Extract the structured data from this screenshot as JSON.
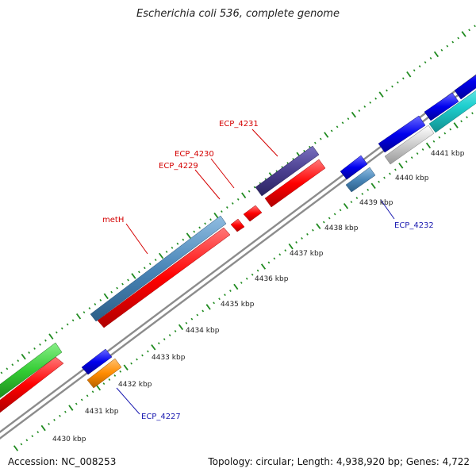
{
  "header": {
    "title": "Escherichia coli 536, complete genome"
  },
  "footer": {
    "accession": "Accession: NC_008253",
    "summary": "Topology: circular; Length: 4,938,920 bp; Genes: 4,722"
  },
  "tick_labels": [
    "4430 kbp",
    "4431 kbp",
    "4432 kbp",
    "4433 kbp",
    "4434 kbp",
    "4435 kbp",
    "4436 kbp",
    "4437 kbp",
    "4438 kbp",
    "4439 kbp",
    "4440 kbp",
    "4441 kbp"
  ],
  "gene_labels": [
    "ECP_4231",
    "ECP_4230",
    "ECP_4229",
    "metH",
    "ECP_4232",
    "ECP_4227"
  ],
  "colors": {
    "forward_cds": "#ff0000",
    "reverse_cds": "#0000ee",
    "steel": "#4a86b8",
    "purple": "#4a3f8f",
    "green": "#33cc33",
    "orange": "#ff8c00",
    "cyan": "#1fcfcf",
    "backbone": "#8c8c8c",
    "tick_dots": "#1f8a1f",
    "red_text": "#d40000",
    "blue_text": "#1a1ab0"
  }
}
